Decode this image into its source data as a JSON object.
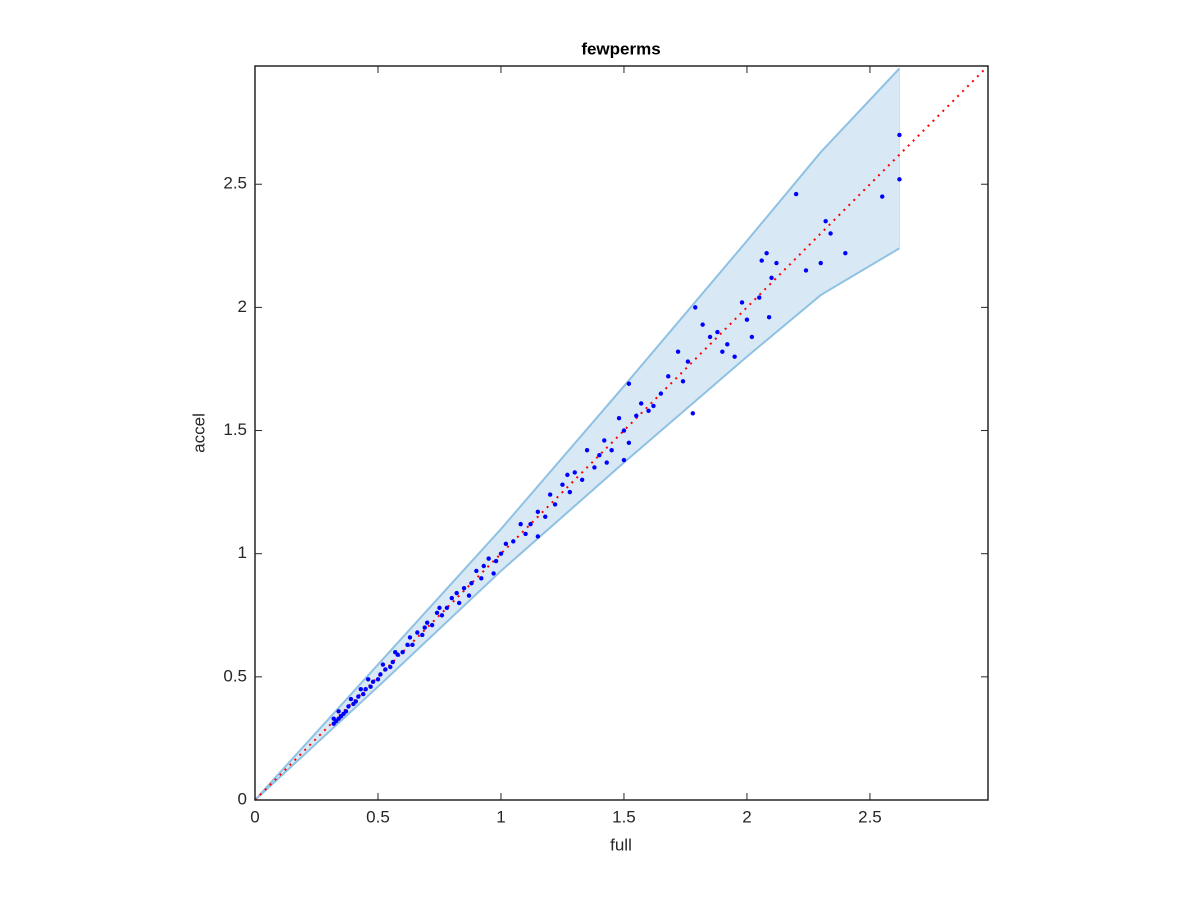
{
  "chart_data": {
    "type": "scatter",
    "title": "fewperms",
    "x_label": "full",
    "y_label": "accel",
    "xlim": [
      0,
      2.98
    ],
    "ylim": [
      0,
      2.98
    ],
    "xticks": [
      0,
      0.5,
      1,
      1.5,
      2,
      2.5
    ],
    "yticks": [
      0,
      0.5,
      1,
      1.5,
      2,
      2.5
    ],
    "band": {
      "color": "#8fc1e3",
      "x": [
        0,
        0.5,
        1,
        1.5,
        2,
        2.3,
        2.62
      ],
      "upper": [
        0,
        0.55,
        1.1,
        1.68,
        2.27,
        2.63,
        2.97
      ],
      "lower": [
        0,
        0.46,
        0.93,
        1.37,
        1.8,
        2.05,
        2.24
      ]
    },
    "reference": {
      "color": "#ff0000",
      "x": [
        0,
        2.98
      ],
      "y": [
        0,
        2.98
      ]
    },
    "points": {
      "color": "#0000ff",
      "x": [
        2.62,
        2.62,
        2.55,
        2.2,
        2.4,
        2.32,
        2.34,
        2.3,
        2.24,
        2.08,
        2.06,
        2.12,
        2.1,
        2.05,
        2.09,
        1.98,
        2.0,
        1.79,
        1.78,
        1.85,
        1.82,
        1.88,
        1.9,
        1.92,
        1.95,
        2.02,
        1.76,
        1.72,
        1.74,
        1.68,
        1.65,
        1.62,
        1.6,
        1.52,
        1.55,
        1.5,
        1.48,
        1.52,
        1.5,
        1.45,
        1.42,
        1.4,
        1.38,
        1.35,
        1.33,
        1.3,
        1.28,
        1.25,
        1.22,
        1.2,
        1.18,
        1.15,
        1.15,
        1.12,
        1.1,
        1.05,
        1.02,
        1.0,
        0.98,
        0.95,
        0.92,
        0.9,
        0.88,
        0.85,
        0.83,
        0.8,
        0.78,
        0.76,
        0.74,
        0.72,
        0.7,
        0.68,
        0.66,
        0.64,
        0.62,
        0.6,
        0.58,
        0.56,
        0.55,
        0.53,
        0.51,
        0.5,
        0.48,
        0.47,
        0.45,
        0.44,
        0.42,
        0.41,
        0.4,
        0.38,
        0.37,
        0.36,
        0.35,
        0.34,
        0.33,
        0.32,
        0.32,
        0.34,
        0.39,
        0.43,
        0.46,
        0.52,
        0.57,
        0.63,
        0.69,
        0.75,
        0.82,
        0.87,
        0.93,
        0.97,
        1.08,
        1.27,
        1.43,
        1.57
      ],
      "y": [
        2.7,
        2.52,
        2.45,
        2.46,
        2.22,
        2.35,
        2.3,
        2.18,
        2.15,
        2.22,
        2.19,
        2.18,
        2.12,
        2.04,
        1.96,
        2.02,
        1.95,
        2.0,
        1.57,
        1.88,
        1.93,
        1.9,
        1.82,
        1.85,
        1.8,
        1.88,
        1.78,
        1.82,
        1.7,
        1.72,
        1.65,
        1.6,
        1.58,
        1.69,
        1.56,
        1.5,
        1.55,
        1.45,
        1.38,
        1.42,
        1.46,
        1.4,
        1.35,
        1.42,
        1.3,
        1.33,
        1.25,
        1.28,
        1.2,
        1.24,
        1.15,
        1.17,
        1.07,
        1.12,
        1.08,
        1.05,
        1.04,
        1.0,
        0.97,
        0.98,
        0.9,
        0.93,
        0.88,
        0.86,
        0.8,
        0.82,
        0.78,
        0.75,
        0.76,
        0.71,
        0.72,
        0.67,
        0.68,
        0.63,
        0.63,
        0.6,
        0.59,
        0.56,
        0.54,
        0.53,
        0.51,
        0.49,
        0.48,
        0.46,
        0.45,
        0.43,
        0.42,
        0.4,
        0.39,
        0.38,
        0.36,
        0.35,
        0.34,
        0.33,
        0.32,
        0.31,
        0.33,
        0.36,
        0.41,
        0.45,
        0.49,
        0.55,
        0.6,
        0.66,
        0.7,
        0.78,
        0.84,
        0.83,
        0.95,
        0.92,
        1.12,
        1.32,
        1.37,
        1.61
      ]
    }
  }
}
